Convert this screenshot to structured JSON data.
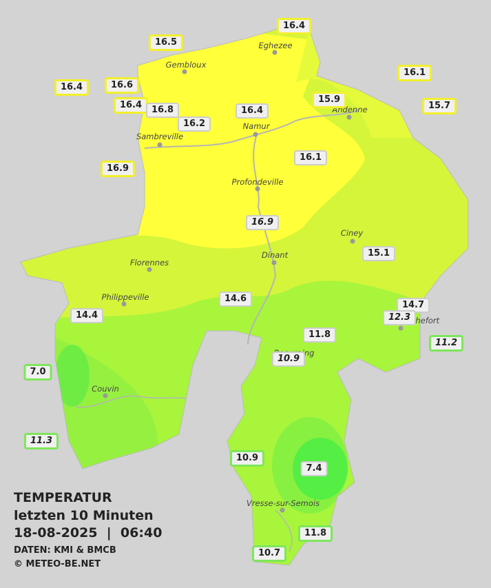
{
  "header": {
    "title": "TEMPERATUR",
    "subtitle": "letzten 10 Minuten",
    "datetime": "18-08-2025  |  06:40",
    "source": "DATEN: KMI & BMCB",
    "copyright": "© METEO-BE.NET"
  },
  "cities": [
    "Eghezee",
    "Gembloux",
    "Andenne",
    "Namur",
    "Sambreville",
    "Profondeville",
    "Ciney",
    "Florennes",
    "Dinant",
    "Philippeville",
    "Couvin",
    "Rochefort",
    "Beauraing",
    "Vresse-sur-Semois"
  ],
  "stations": [
    "16.4",
    "16.5",
    "16.4",
    "16.6",
    "16.1",
    "16.4",
    "16.8",
    "16.2",
    "16.4",
    "16.1",
    "15.9",
    "15.7",
    "16.9",
    "16.9",
    "15.1",
    "14.6",
    "14.7",
    "12.3",
    "14.4",
    "11.8",
    "10.9",
    "11.2",
    "7.0",
    "11.3",
    "10.9",
    "7.4",
    "11.8",
    "10.7"
  ]
}
